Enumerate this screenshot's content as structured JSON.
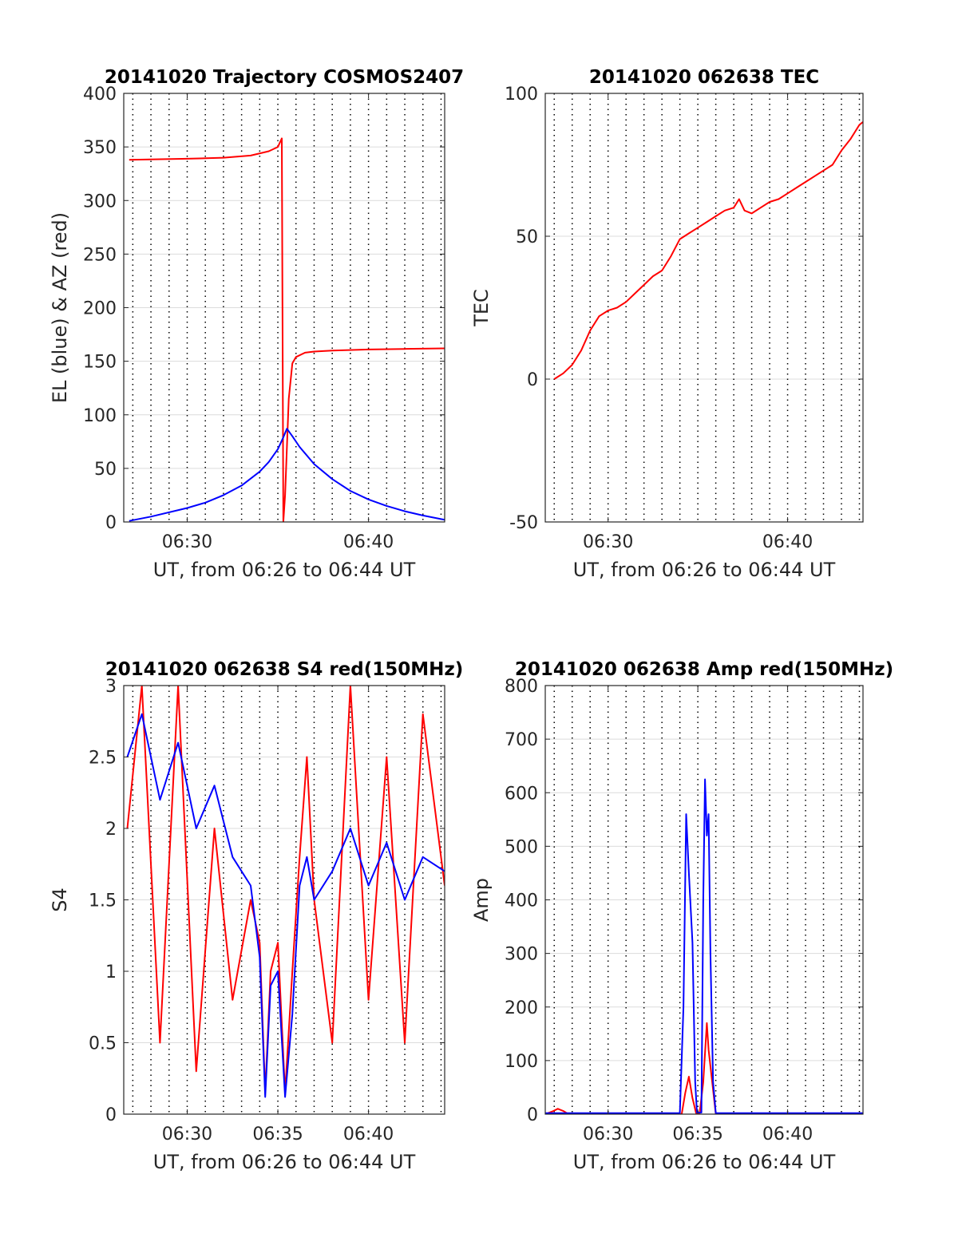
{
  "chart_data": [
    {
      "type": "line",
      "title": "20141020 Trajectory COSMOS2407",
      "xlabel": "UT, from 06:26 to 06:44 UT",
      "ylabel": "EL (blue) & AZ (red)",
      "xlim": [
        26.5,
        44.2
      ],
      "ylim": [
        0,
        400
      ],
      "x_ticks": [
        {
          "value": 30,
          "label": "06:30"
        },
        {
          "value": 40,
          "label": "06:40"
        }
      ],
      "y_ticks": [
        0,
        50,
        100,
        150,
        200,
        250,
        300,
        350,
        400
      ],
      "grid": "x dotted every minute, y solid",
      "series": [
        {
          "color": "#ff0000",
          "x": [
            26.8,
            30,
            32,
            33.5,
            34.5,
            35.0,
            35.22,
            35.3,
            35.4,
            35.5,
            35.6,
            35.8,
            36,
            36.5,
            37,
            38,
            40,
            42,
            44.2
          ],
          "y": [
            338,
            339,
            340,
            342,
            346,
            350,
            358,
            0,
            25,
            70,
            115,
            148,
            154,
            158,
            159,
            160,
            161,
            161.5,
            162
          ]
        },
        {
          "color": "#0000ff",
          "x": [
            26.8,
            28,
            30,
            31,
            32,
            33,
            34,
            34.5,
            35,
            35.3,
            35.5,
            35.8,
            36.2,
            37,
            38,
            39,
            40,
            41,
            42,
            43,
            44.2
          ],
          "y": [
            1,
            5,
            13,
            18,
            25,
            34,
            47,
            56,
            68,
            79,
            87,
            80,
            70,
            54,
            40,
            29,
            21,
            15,
            10,
            6,
            2
          ]
        }
      ]
    },
    {
      "type": "line",
      "title": "20141020 062638 TEC",
      "xlabel": "UT, from 06:26 to 06:44 UT",
      "ylabel": "TEC",
      "xlim": [
        26.5,
        44.2
      ],
      "ylim": [
        -50,
        100
      ],
      "x_ticks": [
        {
          "value": 30,
          "label": "06:30"
        },
        {
          "value": 40,
          "label": "06:40"
        }
      ],
      "y_ticks": [
        -50,
        0,
        50,
        100
      ],
      "grid": "x dotted every minute, y solid",
      "series": [
        {
          "color": "#ff0000",
          "x": [
            27.0,
            27.5,
            28.0,
            28.5,
            29.0,
            29.5,
            30.0,
            30.5,
            31.0,
            31.5,
            32.0,
            32.5,
            33.0,
            33.5,
            34.0,
            34.5,
            35.0,
            35.5,
            36.0,
            36.5,
            37.0,
            37.3,
            37.6,
            38.0,
            38.5,
            39.0,
            39.5,
            40.0,
            40.5,
            41.0,
            41.5,
            42.0,
            42.5,
            43.0,
            43.5,
            44.0,
            44.2
          ],
          "y": [
            0,
            2,
            5,
            10,
            17,
            22,
            24,
            25,
            27,
            30,
            33,
            36,
            38,
            43,
            49,
            51,
            53,
            55,
            57,
            59,
            60,
            63,
            59,
            58,
            60,
            62,
            63,
            65,
            67,
            69,
            71,
            73,
            75,
            80,
            84,
            89,
            90
          ]
        }
      ]
    },
    {
      "type": "line",
      "title": "20141020 062638 S4 red(150MHz)",
      "xlabel": "UT, from 06:26 to 06:44 UT",
      "ylabel": "S4",
      "xlim": [
        26.5,
        44.2
      ],
      "ylim": [
        0,
        3
      ],
      "x_ticks": [
        {
          "value": 30,
          "label": "06:30"
        },
        {
          "value": 35,
          "label": "06:35"
        },
        {
          "value": 40,
          "label": "06:40"
        }
      ],
      "y_ticks": [
        {
          "value": 0,
          "label": "0"
        },
        {
          "value": 0.5,
          "label": "0.5"
        },
        {
          "value": 1,
          "label": "1"
        },
        {
          "value": 1.5,
          "label": "1.5"
        },
        {
          "value": 2,
          "label": "2"
        },
        {
          "value": 2.5,
          "label": "2.5"
        },
        {
          "value": 3,
          "label": "3"
        }
      ],
      "grid": "x dotted every minute, y solid",
      "series": [
        {
          "color": "#ff0000",
          "x": [
            26.7,
            27.5,
            28.5,
            29.5,
            30.5,
            31.5,
            32.5,
            33.5,
            34.0,
            34.3,
            34.6,
            35.0,
            35.4,
            35.8,
            36.2,
            36.6,
            37.0,
            38.0,
            39.0,
            40.0,
            41.0,
            42.0,
            43.0,
            44.2
          ],
          "y": [
            2.0,
            3.0,
            0.5,
            3.0,
            0.3,
            2.0,
            0.8,
            1.5,
            1.2,
            0.15,
            1.0,
            1.2,
            0.15,
            1.0,
            1.8,
            2.5,
            1.5,
            0.5,
            3.0,
            0.8,
            2.5,
            0.5,
            2.8,
            1.6
          ]
        },
        {
          "color": "#0000ff",
          "x": [
            26.7,
            27.5,
            28.5,
            29.5,
            30.5,
            31.5,
            32.5,
            33.5,
            34.0,
            34.3,
            34.6,
            35.0,
            35.4,
            35.8,
            36.2,
            36.6,
            37.0,
            38.0,
            39.0,
            40.0,
            41.0,
            42.0,
            43.0,
            44.2
          ],
          "y": [
            2.5,
            2.8,
            2.2,
            2.6,
            2.0,
            2.3,
            1.8,
            1.6,
            1.1,
            0.12,
            0.9,
            1.0,
            0.12,
            0.7,
            1.6,
            1.8,
            1.5,
            1.7,
            2.0,
            1.6,
            1.9,
            1.5,
            1.8,
            1.7
          ]
        }
      ]
    },
    {
      "type": "line",
      "title": "20141020 062638 Amp red(150MHz)",
      "xlabel": "UT, from 06:26 to 06:44 UT",
      "ylabel": "Amp",
      "xlim": [
        26.5,
        44.2
      ],
      "ylim": [
        0,
        800
      ],
      "x_ticks": [
        {
          "value": 30,
          "label": "06:30"
        },
        {
          "value": 35,
          "label": "06:35"
        },
        {
          "value": 40,
          "label": "06:40"
        }
      ],
      "y_ticks": [
        0,
        100,
        200,
        300,
        400,
        500,
        600,
        700,
        800
      ],
      "grid": "x dotted every minute, y solid",
      "series": [
        {
          "color": "#ff0000",
          "x": [
            26.5,
            26.9,
            27.2,
            27.5,
            27.8,
            34.1,
            34.3,
            34.5,
            34.7,
            34.9,
            35.1,
            35.3,
            35.5,
            35.6,
            35.8,
            36.0,
            44.2
          ],
          "y": [
            0,
            5,
            10,
            6,
            0,
            0,
            40,
            70,
            30,
            2,
            2,
            60,
            170,
            120,
            60,
            0,
            0
          ]
        },
        {
          "color": "#0000ff",
          "x": [
            26.5,
            34.0,
            34.2,
            34.35,
            34.5,
            34.7,
            34.85,
            34.95,
            35.2,
            35.3,
            35.4,
            35.5,
            35.6,
            35.7,
            35.85,
            36.0,
            44.2
          ],
          "y": [
            2,
            2,
            200,
            560,
            450,
            320,
            60,
            3,
            3,
            400,
            625,
            520,
            560,
            300,
            60,
            2,
            2
          ]
        }
      ]
    }
  ]
}
